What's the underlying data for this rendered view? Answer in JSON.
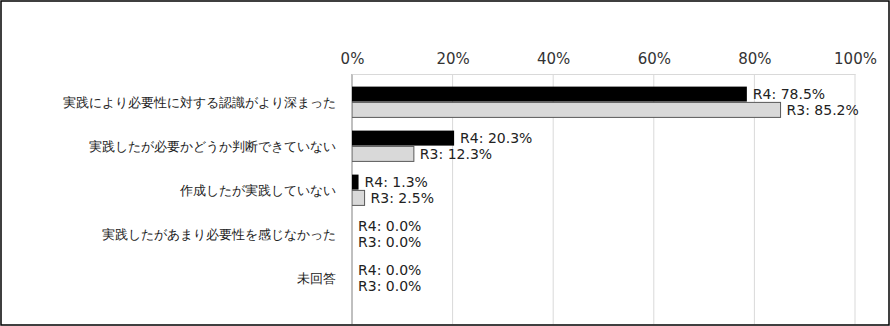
{
  "chart_data": {
    "type": "bar",
    "orientation": "horizontal",
    "categories": [
      "実践により必要性に対する認識がより深まった",
      "実践したが必要かどうか判断できていない",
      "作成したが実践していない",
      "実践したがあまり必要性を感じなかった",
      "未回答"
    ],
    "series": [
      {
        "color": "#000000",
        "values": [
          78.5,
          20.3,
          1.3,
          0.0,
          0.0
        ],
        "value_labels": [
          "R4: 78.5%",
          "R4: 20.3%",
          "R4: 1.3%",
          "R4: 0.0%",
          "R4: 0.0%"
        ]
      },
      {
        "color": "#d9d9d9",
        "values": [
          85.2,
          12.3,
          2.5,
          0.0,
          0.0
        ],
        "value_labels": [
          "R3: 85.2%",
          "R3: 12.3%",
          "R3: 2.5%",
          "R3: 0.0%",
          "R3: 0.0%"
        ]
      }
    ],
    "xlim": [
      0,
      100
    ],
    "xticks": [
      {
        "value": 0,
        "label": "0%"
      },
      {
        "value": 20,
        "label": "20%"
      },
      {
        "value": 40,
        "label": "40%"
      },
      {
        "value": 60,
        "label": "60%"
      },
      {
        "value": 80,
        "label": "80%"
      },
      {
        "value": 100,
        "label": "100%"
      }
    ],
    "grid": true,
    "data_labels": true
  }
}
